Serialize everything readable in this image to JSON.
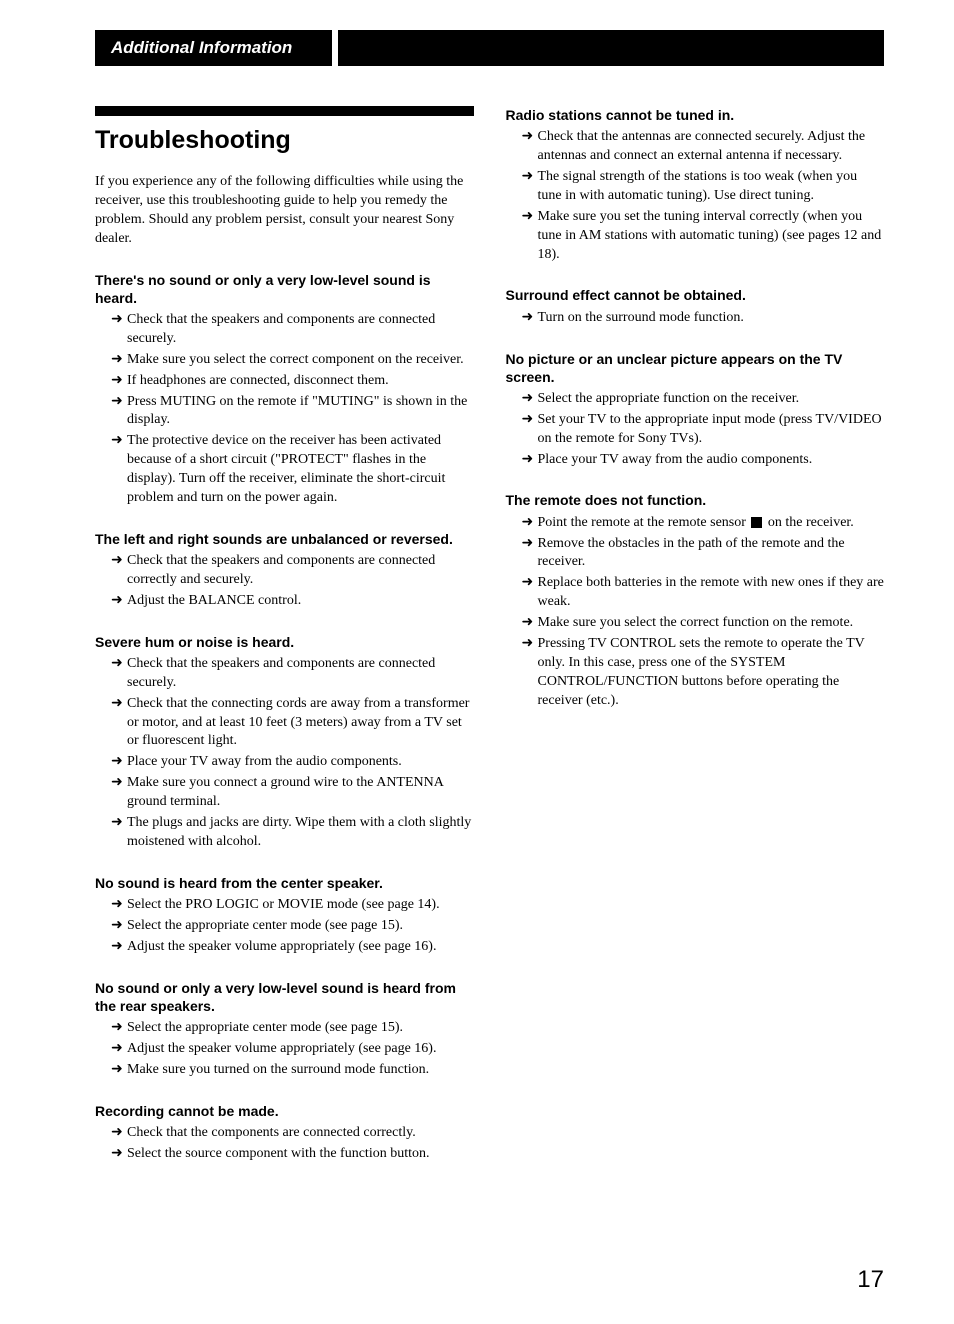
{
  "header": "Additional Information",
  "title": "Troubleshooting",
  "intro": "If you experience any of the following difficulties while using the receiver, use this troubleshooting guide to help you remedy the problem. Should any problem persist, consult your nearest Sony dealer.",
  "page_number": "17",
  "colors": {
    "text": "#000000",
    "background": "#ffffff",
    "bar": "#000000"
  },
  "typography": {
    "body_family": "serif",
    "heading_family": "sans-serif",
    "title_size_pt": 19,
    "heading_size_pt": 11,
    "body_size_pt": 10,
    "page_num_size_pt": 18
  },
  "left_sections": [
    {
      "heading": "There's no sound or only a very low-level sound is heard.",
      "items": [
        "Check that the speakers and components are connected securely.",
        "Make sure you select the correct component on the receiver.",
        "If headphones are connected, disconnect them.",
        "Press MUTING on the remote if \"MUTING\" is shown in the display.",
        "The protective device on the receiver has been activated because of a short circuit (\"PROTECT\" flashes in the display). Turn off the receiver, eliminate the short-circuit problem and turn on the power again."
      ]
    },
    {
      "heading": "The left and right sounds are unbalanced or reversed.",
      "items": [
        "Check that the speakers and components are connected correctly and securely.",
        "Adjust the BALANCE control."
      ]
    },
    {
      "heading": "Severe hum or noise is heard.",
      "items": [
        "Check that the speakers and components are connected securely.",
        "Check that the connecting cords are away from a transformer or motor, and at least 10 feet (3 meters) away from a TV set or fluorescent light.",
        "Place your TV away from the audio components.",
        "Make sure you connect a ground wire to the ANTENNA ground terminal.",
        "The plugs and jacks are dirty. Wipe them with a cloth slightly moistened with alcohol."
      ]
    },
    {
      "heading": "No sound is heard from the center speaker.",
      "items": [
        "Select the PRO LOGIC or MOVIE mode (see page 14).",
        "Select the appropriate center mode (see page 15).",
        "Adjust the speaker volume appropriately (see page 16)."
      ]
    },
    {
      "heading": "No sound or only a very low-level sound is heard from the rear speakers.",
      "items": [
        "Select the appropriate center mode (see page 15).",
        "Adjust the speaker volume appropriately (see page 16).",
        "Make sure you turned on the surround mode function."
      ]
    },
    {
      "heading": "Recording cannot be made.",
      "items": [
        "Check that the components are connected correctly.",
        "Select the source component with the function button."
      ]
    }
  ],
  "right_sections": [
    {
      "heading": "Radio stations cannot be tuned in.",
      "items": [
        "Check that the antennas are connected securely. Adjust the antennas and connect an external antenna if necessary.",
        "The signal strength of the stations is too weak (when you tune in with automatic tuning). Use direct tuning.",
        "Make sure you set the tuning interval correctly (when you tune in AM stations with automatic tuning) (see pages 12 and 18)."
      ]
    },
    {
      "heading": "Surround effect cannot be obtained.",
      "items": [
        "Turn on the surround mode function."
      ]
    },
    {
      "heading": "No picture or an unclear picture appears on the TV screen.",
      "items": [
        "Select the appropriate function on the receiver.",
        "Set your TV to the appropriate input mode (press TV/VIDEO on the remote for Sony TVs).",
        "Place your TV away from the audio components."
      ]
    },
    {
      "heading": "The remote does not function.",
      "items": [
        {
          "pre": "Point the remote at the remote sensor",
          "icon": true,
          "post": "on the receiver."
        },
        "Remove the obstacles in the path of the remote and the receiver.",
        "Replace both batteries in the remote with new ones if they are weak.",
        "Make sure you select the correct function on the remote.",
        "Pressing TV CONTROL sets the remote to operate the TV only. In this case, press one of the SYSTEM CONTROL/FUNCTION buttons before operating the receiver (etc.)."
      ]
    }
  ]
}
